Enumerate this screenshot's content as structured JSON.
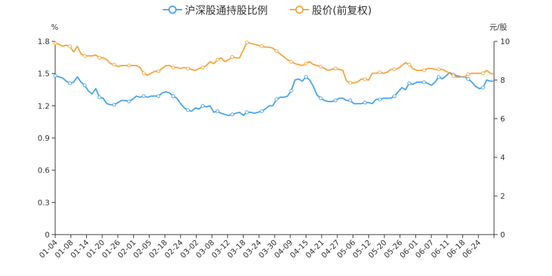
{
  "chart_data": {
    "type": "line",
    "legend": {
      "placement": "top-center",
      "items": [
        "沪深股通持股比例",
        "股价(前复权)"
      ]
    },
    "y_left": {
      "unit": "%",
      "ylim": [
        0,
        1.8
      ],
      "ticks": [
        "0",
        "0.3",
        "0.6",
        "0.9",
        "1.2",
        "1.5",
        "1.8"
      ]
    },
    "y_right": {
      "unit": "元/股",
      "ylim": [
        0,
        10
      ],
      "ticks": [
        "0",
        "2",
        "4",
        "6",
        "8",
        "10"
      ]
    },
    "x_tick_labels": [
      "01-04",
      "01-08",
      "01-14",
      "01-20",
      "01-26",
      "02-01",
      "02-05",
      "02-18",
      "02-24",
      "03-02",
      "03-08",
      "03-12",
      "03-18",
      "03-24",
      "03-30",
      "04-09",
      "04-15",
      "04-21",
      "04-27",
      "05-06",
      "05-12",
      "05-20",
      "05-26",
      "06-01",
      "06-07",
      "06-11",
      "06-18",
      "06-24"
    ],
    "grid": false,
    "colors": {
      "holding": "#4da6e8",
      "price": "#f5a742"
    },
    "series": [
      {
        "name": "沪深股通持股比例",
        "axis": "left",
        "values": [
          1.48,
          1.47,
          1.46,
          1.43,
          1.41,
          1.42,
          1.47,
          1.42,
          1.39,
          1.34,
          1.31,
          1.36,
          1.28,
          1.27,
          1.22,
          1.21,
          1.21,
          1.23,
          1.25,
          1.25,
          1.24,
          1.26,
          1.29,
          1.28,
          1.29,
          1.28,
          1.29,
          1.29,
          1.29,
          1.32,
          1.33,
          1.32,
          1.29,
          1.27,
          1.22,
          1.18,
          1.16,
          1.15,
          1.18,
          1.17,
          1.2,
          1.19,
          1.2,
          1.14,
          1.15,
          1.13,
          1.12,
          1.11,
          1.12,
          1.13,
          1.14,
          1.11,
          1.14,
          1.14,
          1.13,
          1.14,
          1.15,
          1.17,
          1.2,
          1.2,
          1.26,
          1.28,
          1.28,
          1.29,
          1.34,
          1.44,
          1.45,
          1.43,
          1.47,
          1.44,
          1.38,
          1.3,
          1.27,
          1.25,
          1.24,
          1.24,
          1.25,
          1.27,
          1.27,
          1.25,
          1.25,
          1.22,
          1.22,
          1.22,
          1.23,
          1.23,
          1.22,
          1.26,
          1.26,
          1.27,
          1.27,
          1.27,
          1.29,
          1.33,
          1.37,
          1.35,
          1.41,
          1.4,
          1.42,
          1.42,
          1.42,
          1.41,
          1.39,
          1.42,
          1.47,
          1.45,
          1.48,
          1.51,
          1.49,
          1.48,
          1.47,
          1.47,
          1.45,
          1.42,
          1.38,
          1.36,
          1.37,
          1.44,
          1.43,
          1.43
        ]
      },
      {
        "name": "股价(前复权)",
        "axis": "right",
        "values": [
          9.9,
          9.85,
          9.75,
          9.8,
          9.75,
          9.45,
          9.75,
          9.35,
          9.25,
          9.25,
          9.25,
          9.3,
          9.15,
          9.15,
          9.05,
          8.85,
          8.8,
          8.7,
          8.75,
          8.75,
          8.75,
          8.75,
          8.75,
          8.65,
          8.35,
          8.25,
          8.35,
          8.45,
          8.45,
          8.6,
          8.75,
          8.75,
          8.65,
          8.65,
          8.6,
          8.65,
          8.6,
          8.55,
          8.5,
          8.6,
          8.65,
          8.75,
          8.95,
          8.85,
          9.05,
          9.15,
          8.95,
          9.05,
          9.2,
          9.15,
          9.15,
          9.55,
          9.95,
          9.9,
          9.85,
          9.8,
          9.75,
          9.7,
          9.7,
          9.65,
          9.5,
          9.35,
          9.2,
          9.05,
          8.95,
          8.85,
          8.8,
          8.75,
          8.85,
          8.95,
          8.8,
          8.75,
          8.7,
          8.6,
          8.5,
          8.55,
          8.6,
          8.55,
          8.5,
          7.95,
          7.85,
          7.85,
          7.9,
          8.05,
          8.05,
          8.0,
          8.35,
          8.35,
          8.4,
          8.35,
          8.4,
          8.55,
          8.55,
          8.6,
          8.75,
          8.9,
          8.8,
          8.6,
          8.5,
          8.5,
          8.5,
          8.6,
          8.6,
          8.55,
          8.55,
          8.55,
          8.45,
          8.35,
          8.2,
          8.15,
          8.15,
          8.15,
          8.3,
          8.35,
          8.35,
          8.35,
          8.35,
          8.5,
          8.35,
          8.3
        ]
      }
    ]
  }
}
